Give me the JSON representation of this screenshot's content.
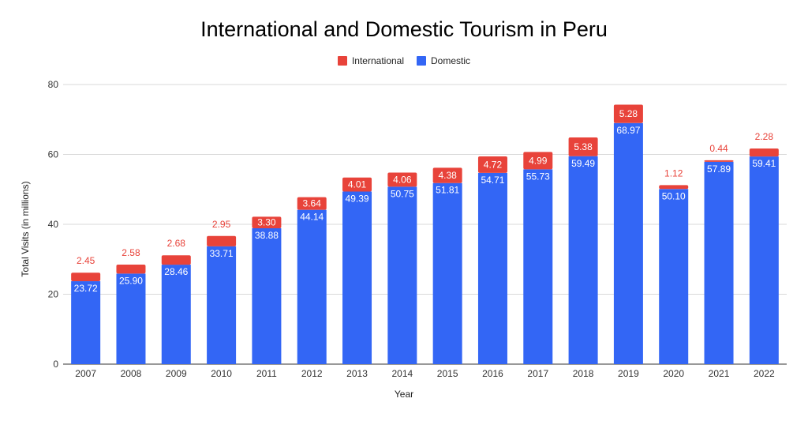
{
  "chart_data": {
    "type": "bar",
    "stacked": true,
    "title": "International and Domestic Tourism in Peru",
    "xlabel": "Year",
    "ylabel": "Total Visits (in millions)",
    "ylim": [
      0,
      80
    ],
    "yticks": [
      0,
      20,
      40,
      60,
      80
    ],
    "grid": true,
    "legend_position": "top-center",
    "categories": [
      "2007",
      "2008",
      "2009",
      "2010",
      "2011",
      "2012",
      "2013",
      "2014",
      "2015",
      "2016",
      "2017",
      "2018",
      "2019",
      "2020",
      "2021",
      "2022"
    ],
    "series": [
      {
        "name": "Domestic",
        "color": "#3366f5",
        "values": [
          23.72,
          25.9,
          28.46,
          33.71,
          38.88,
          44.14,
          49.39,
          50.75,
          51.81,
          54.71,
          55.73,
          59.49,
          68.97,
          50.1,
          57.89,
          59.41
        ]
      },
      {
        "name": "International",
        "color": "#e8433a",
        "values": [
          2.45,
          2.58,
          2.68,
          2.95,
          3.3,
          3.64,
          4.01,
          4.06,
          4.38,
          4.72,
          4.99,
          5.38,
          5.28,
          1.12,
          0.44,
          2.28
        ]
      }
    ]
  }
}
